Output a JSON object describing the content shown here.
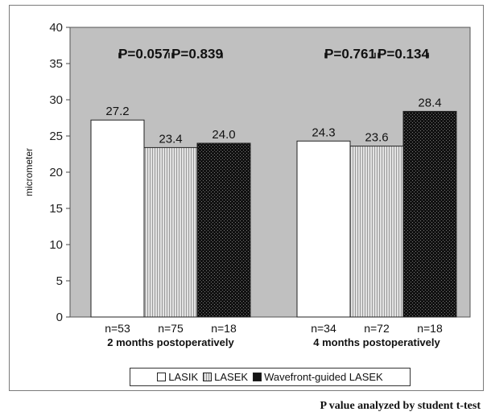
{
  "chart_data": {
    "type": "bar",
    "ylabel": "micrometer",
    "ylim": [
      0,
      40
    ],
    "yticks": [
      0,
      5,
      10,
      15,
      20,
      25,
      30,
      35,
      40
    ],
    "groups": [
      {
        "label": "2 months postoperatively",
        "values": [
          27.2,
          23.4,
          24.0
        ],
        "value_labels": [
          "27.2",
          "23.4",
          "24.0"
        ],
        "n_labels": [
          "n=53",
          "n=75",
          "n=18"
        ],
        "p_values": [
          "P=0.057",
          "P=0.839"
        ]
      },
      {
        "label": "4 months postoperatively",
        "values": [
          24.3,
          23.6,
          28.4
        ],
        "value_labels": [
          "24.3",
          "23.6",
          "28.4"
        ],
        "n_labels": [
          "n=34",
          "n=72",
          "n=18"
        ],
        "p_values": [
          "P=0.761",
          "P=0.134"
        ]
      }
    ],
    "series": [
      {
        "name": "LASIK",
        "fill": "#ffffff"
      },
      {
        "name": "LASEK",
        "fill": "#cfcfcf"
      },
      {
        "name": "Wavefront-guided LASEK",
        "fill": "#1f1f1f"
      }
    ],
    "plot_background": "#c0c0c0",
    "grid": false,
    "legend_position": "bottom"
  },
  "footnote": "P value analyzed by student t-test"
}
